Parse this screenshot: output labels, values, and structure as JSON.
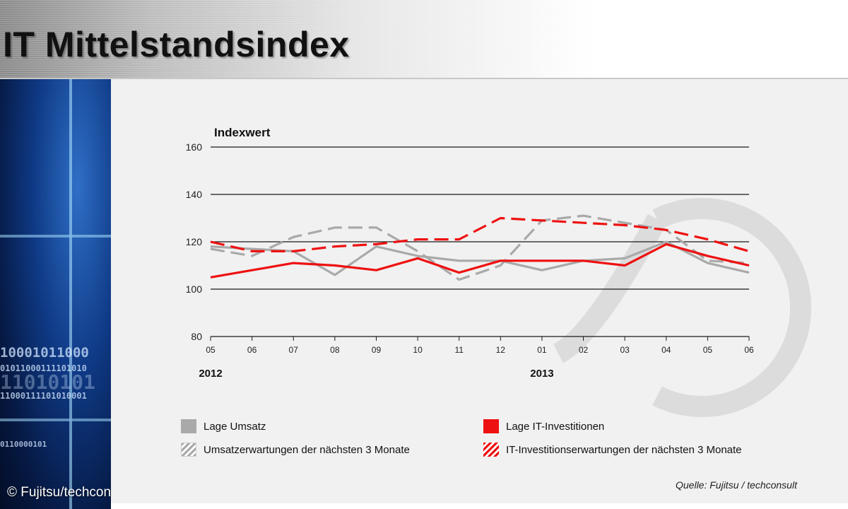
{
  "header": {
    "title": "IT Mittelstandsindex"
  },
  "sidebar": {
    "binary_lines": [
      "10001011000",
      "01011000111101010",
      "11010101",
      "11000111101010001",
      "0110000101"
    ]
  },
  "footer": {
    "copyright": "© Fujitsu/techconsult"
  },
  "chart_data": {
    "type": "line",
    "ylabel": "Indexwert",
    "ylim": [
      80,
      160
    ],
    "yticks": [
      80,
      100,
      120,
      140,
      160
    ],
    "grid": true,
    "categories": [
      "05",
      "06",
      "07",
      "08",
      "09",
      "10",
      "11",
      "12",
      "01",
      "02",
      "03",
      "04",
      "05",
      "06"
    ],
    "year_labels": [
      {
        "label": "2012",
        "category_index": 0
      },
      {
        "label": "2013",
        "category_index": 8
      }
    ],
    "source": "Quelle: Fujitsu / techconsult",
    "legend_position": "bottom",
    "series": [
      {
        "name": "Lage Umsatz",
        "color": "#a9a9a9",
        "style": "solid",
        "values": [
          118,
          117,
          116,
          106,
          118,
          114,
          112,
          112,
          108,
          112,
          113,
          120,
          111,
          107
        ]
      },
      {
        "name": "Lage IT-Investitionen",
        "color": "#ee1111",
        "style": "solid",
        "values": [
          105,
          108,
          111,
          110,
          108,
          113,
          107,
          112,
          112,
          112,
          110,
          119,
          114,
          110
        ]
      },
      {
        "name": "Umsatzerwartungen der nächsten 3 Monate",
        "color": "#a9a9a9",
        "style": "dashed",
        "values": [
          117,
          114,
          122,
          126,
          126,
          116,
          104,
          110,
          129,
          131,
          128,
          125,
          112,
          111
        ]
      },
      {
        "name": "IT-Investitionserwartungen der nächsten 3 Monate",
        "color": "#ee1111",
        "style": "dashed",
        "values": [
          120,
          116,
          116,
          118,
          119,
          121,
          121,
          130,
          129,
          128,
          127,
          125,
          121,
          116
        ]
      }
    ]
  }
}
